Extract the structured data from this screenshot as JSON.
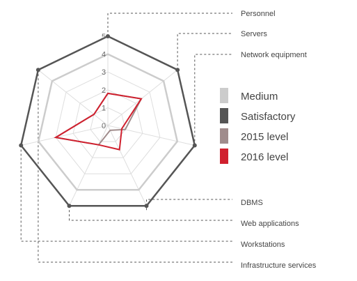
{
  "chart_data": {
    "type": "radar",
    "title": "",
    "axes": [
      "Personnel",
      "Servers",
      "Network equipment",
      "DBMS",
      "Web applications",
      "Workstations",
      "Infrastructure services"
    ],
    "rlim": [
      0,
      5
    ],
    "r_ticks": [
      "0",
      "1",
      "2",
      "3",
      "4",
      "5"
    ],
    "grid": true,
    "legend_position": "right",
    "series": [
      {
        "name": "Medium",
        "color": "#cccccc",
        "values": [
          4,
          4,
          4,
          4,
          4,
          4,
          4
        ]
      },
      {
        "name": "Satisfactory",
        "color": "#555555",
        "values": [
          5,
          5,
          5,
          5,
          5,
          5,
          5
        ]
      },
      {
        "name": "2015 level",
        "color": "#a08c8c",
        "values": [
          1.8,
          2.4,
          1.0,
          0.3,
          1.2,
          3.0,
          1.0
        ]
      },
      {
        "name": "2016 level",
        "color": "#d0202e",
        "values": [
          1.8,
          2.4,
          0.8,
          1.5,
          1.2,
          3.0,
          1.0
        ]
      }
    ]
  }
}
